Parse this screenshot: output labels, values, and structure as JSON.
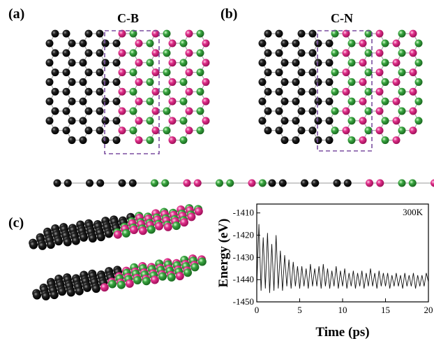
{
  "panels": [
    {
      "label": "(a)",
      "title": "C-B"
    },
    {
      "label": "(b)",
      "title": "C-N"
    },
    {
      "label": "(c)"
    }
  ],
  "chart_data": {
    "type": "line",
    "x_label": "Time (ps)",
    "y_label": "Energy (eV)",
    "annotation": "300K",
    "color": "#111111",
    "x": [
      0,
      0.25,
      0.5,
      0.75,
      1,
      1.25,
      1.5,
      1.75,
      2,
      2.25,
      2.5,
      2.75,
      3,
      3.25,
      3.5,
      3.75,
      4,
      4.25,
      4.5,
      4.75,
      5,
      5.25,
      5.5,
      5.75,
      6,
      6.25,
      6.5,
      6.75,
      7,
      7.25,
      7.5,
      7.75,
      8,
      8.25,
      8.5,
      8.75,
      9,
      9.25,
      9.5,
      9.75,
      10,
      10.25,
      10.5,
      10.75,
      11,
      11.25,
      11.5,
      11.75,
      12,
      12.25,
      12.5,
      12.75,
      13,
      13.25,
      13.5,
      13.75,
      14,
      14.25,
      14.5,
      14.75,
      15,
      15.25,
      15.5,
      15.75,
      16,
      16.25,
      16.5,
      16.75,
      17,
      17.25,
      17.5,
      17.75,
      18,
      18.25,
      18.5,
      18.75,
      19,
      19.25,
      19.5,
      19.75,
      20
    ],
    "values": [
      -1443,
      -1415,
      -1445,
      -1421,
      -1444,
      -1419,
      -1446,
      -1424,
      -1445,
      -1420,
      -1444,
      -1427,
      -1445,
      -1429,
      -1443,
      -1431,
      -1444,
      -1432,
      -1443,
      -1434,
      -1444,
      -1434,
      -1443,
      -1435,
      -1444,
      -1433,
      -1443,
      -1435,
      -1443,
      -1434,
      -1444,
      -1433,
      -1443,
      -1435,
      -1444,
      -1436,
      -1443,
      -1434,
      -1444,
      -1436,
      -1443,
      -1435,
      -1444,
      -1437,
      -1443,
      -1436,
      -1444,
      -1437,
      -1443,
      -1436,
      -1444,
      -1437,
      -1443,
      -1435,
      -1443,
      -1437,
      -1444,
      -1436,
      -1443,
      -1437,
      -1443,
      -1437,
      -1444,
      -1438,
      -1443,
      -1437,
      -1443,
      -1438,
      -1444,
      -1437,
      -1443,
      -1438,
      -1443,
      -1437,
      -1444,
      -1438,
      -1443,
      -1438,
      -1443,
      -1437,
      -1441
    ],
    "xlim": [
      0,
      20
    ],
    "xticks": [
      0,
      5,
      10,
      15,
      20
    ],
    "ylim": [
      -1450,
      -1406
    ],
    "yticks": [
      -1410,
      -1420,
      -1430,
      -1440,
      -1450
    ]
  }
}
